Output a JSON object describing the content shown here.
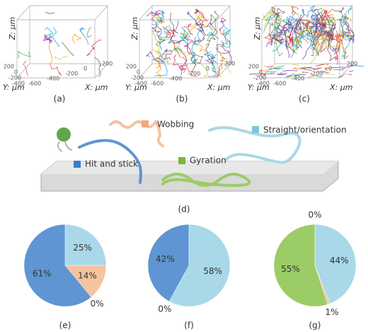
{
  "panels": [
    {
      "caption": "(a)",
      "z_label": "Z: μm",
      "y_label": "Y: μm",
      "x_label": "X: μm",
      "y_ticks": [
        200,
        0,
        -200,
        -400
      ],
      "x_ticks": [
        -600,
        -400,
        -200,
        0,
        200
      ]
    },
    {
      "caption": "(b)",
      "z_label": "Z: μm",
      "y_label": "Y: μm",
      "x_label": "X: μm",
      "y_ticks": [
        200,
        0,
        -200,
        -400
      ],
      "x_ticks": [
        -600,
        -400,
        -200,
        0,
        200
      ]
    },
    {
      "caption": "(c)",
      "z_label": "Z: μm",
      "y_label": "Y: μm",
      "x_label": "X: μm",
      "y_ticks": [
        200,
        0,
        -200,
        -400
      ],
      "x_ticks": [
        -600,
        -400,
        -200,
        0,
        200
      ]
    }
  ],
  "diagram": {
    "caption": "(d)",
    "wobbing": "Wobbing",
    "straight": "Straight/orientation",
    "hit": "Hit and stick",
    "gyration": "Gyration"
  },
  "chart_data": [
    {
      "type": "pie",
      "caption": "(e)",
      "values": [
        25,
        14,
        0,
        61
      ],
      "value_labels": [
        "25%",
        "14%",
        "0%",
        "61%"
      ],
      "colors": [
        "#a9d8e8",
        "#f6c3a0",
        "#9ccc65",
        "#5f95d3"
      ]
    },
    {
      "type": "pie",
      "caption": "(f)",
      "values": [
        58,
        0,
        42
      ],
      "value_labels": [
        "58%",
        "0%",
        "42%"
      ],
      "colors": [
        "#a9d8e8",
        "#9ccc65",
        "#5f95d3"
      ]
    },
    {
      "type": "pie",
      "caption": "(g)",
      "values": [
        44,
        1,
        55,
        0
      ],
      "value_labels": [
        "44%",
        "1%",
        "55%",
        "0%"
      ],
      "colors": [
        "#a9d8e8",
        "#f6c3a0",
        "#9ccc65",
        "#5f95d3"
      ]
    }
  ]
}
